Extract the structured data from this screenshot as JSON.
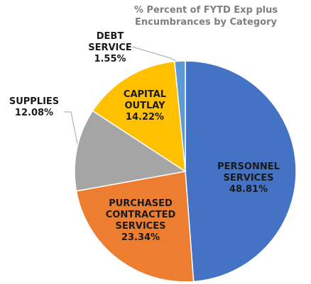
{
  "chart_data": {
    "type": "pie",
    "title": "% Percent of FYTD Exp plus Encumbrances by Category",
    "categories": [
      "PERSONNEL SERVICES",
      "PURCHASED CONTRACTED SERVICES",
      "SUPPLIES",
      "CAPITAL OUTLAY",
      "DEBT SERVICE"
    ],
    "values": [
      48.81,
      23.34,
      12.08,
      14.22,
      1.55
    ],
    "value_labels": [
      "48.81%",
      "23.34%",
      "12.08%",
      "14.22%",
      "1.55%"
    ],
    "colors": [
      "#4472c4",
      "#ed7d31",
      "#a5a5a5",
      "#ffc000",
      "#5b9bd5"
    ]
  }
}
